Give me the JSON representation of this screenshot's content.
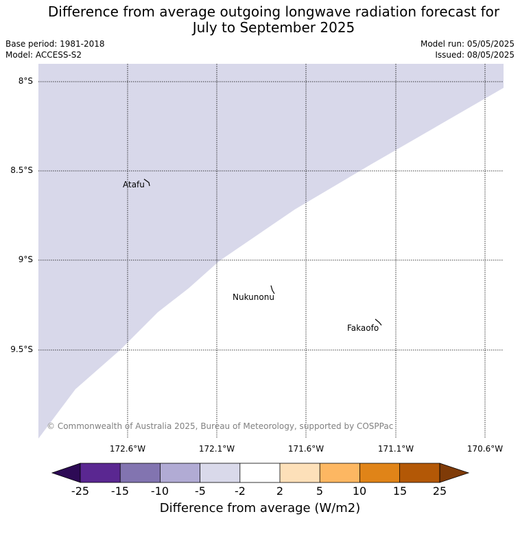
{
  "title": {
    "line1": "Difference from average outgoing longwave radiation forecast for",
    "line2": "July to September 2025"
  },
  "meta": {
    "base_period": "Base period: 1981-2018",
    "model": "Model: ACCESS-S2",
    "model_run": "Model run: 05/05/2025",
    "issued": "Issued: 08/05/2025"
  },
  "map": {
    "lat_labels": [
      "8°S",
      "8.5°S",
      "9°S",
      "9.5°S"
    ],
    "lon_labels": [
      "172.6°W",
      "172.1°W",
      "171.6°W",
      "171.1°W",
      "170.6°W"
    ],
    "places": [
      "Atafu",
      "Nukunonu",
      "Fakaofo"
    ],
    "shaded_class": "-5 to -2",
    "copyright": "© Commonwealth of Australia 2025, Bureau of Meteorology, supported by COSPPac"
  },
  "colorbar": {
    "ticks": [
      "-25",
      "-15",
      "-10",
      "-5",
      "-2",
      "2",
      "5",
      "10",
      "15",
      "25"
    ],
    "colors": [
      "#2d0a55",
      "#5a2791",
      "#8274b0",
      "#b1abd4",
      "#d9d9ea",
      "#ffffff",
      "#fde0b9",
      "#fdb762",
      "#e08418",
      "#b35806",
      "#7f3b08"
    ],
    "title": "Difference from average (W/m2)"
  }
}
